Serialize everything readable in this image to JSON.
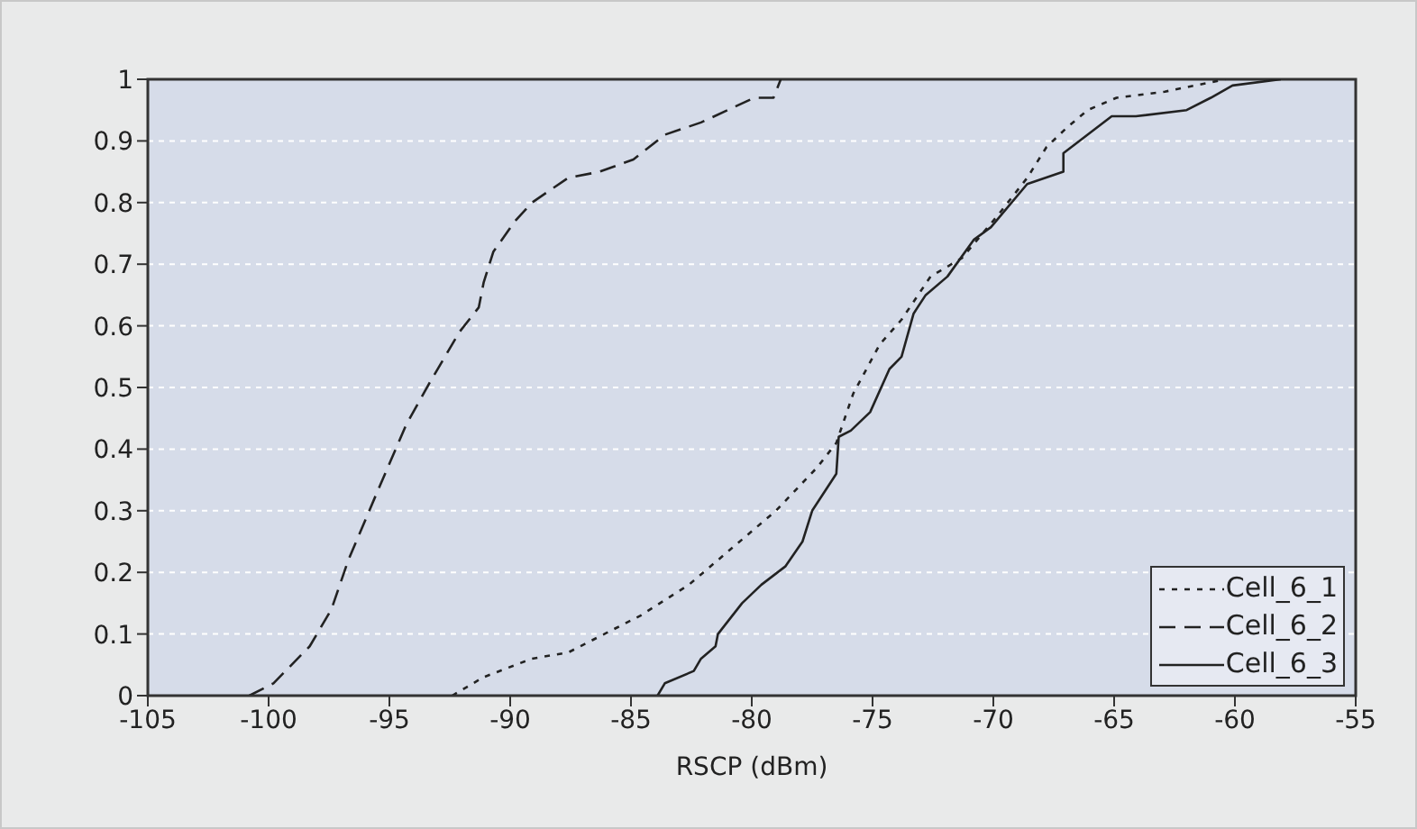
{
  "chart_data": {
    "type": "line",
    "xlabel": "RSCP (dBm)",
    "xlim": [
      -105,
      -55
    ],
    "xticks": [
      -105,
      -100,
      -95,
      -90,
      -85,
      -80,
      -75,
      -70,
      -65,
      -60,
      -55
    ],
    "ylim": [
      0,
      1
    ],
    "yticks": [
      0,
      0.1,
      0.2,
      0.3,
      0.4,
      0.5,
      0.6,
      0.7,
      0.8,
      0.9,
      1
    ],
    "grid": "y",
    "legend": "bottom right",
    "marker": "none",
    "series": [
      {
        "name": "Cell_6_1",
        "color": "#222222",
        "line_style": "dotted",
        "x": [
          -92.4,
          -91.1,
          -89.1,
          -87.6,
          -85.6,
          -84.6,
          -82.6,
          -80.8,
          -79,
          -77.3,
          -76.5,
          -75.8,
          -74.7,
          -73.8,
          -72.6,
          -71.3,
          -69.8,
          -68.6,
          -67.8,
          -67,
          -66.1,
          -64.9,
          -62.9,
          -60.4
        ],
        "values": [
          0,
          0.03,
          0.06,
          0.07,
          0.11,
          0.13,
          0.18,
          0.24,
          0.3,
          0.37,
          0.41,
          0.49,
          0.57,
          0.61,
          0.68,
          0.71,
          0.78,
          0.84,
          0.89,
          0.92,
          0.95,
          0.97,
          0.98,
          1
        ]
      },
      {
        "name": "Cell_6_2",
        "color": "#222222",
        "line_style": "dashed",
        "x": [
          -100.8,
          -99.8,
          -98.3,
          -97.4,
          -96.7,
          -95.4,
          -94.3,
          -93.3,
          -92.1,
          -91.3,
          -91.1,
          -90.7,
          -89.8,
          -89.1,
          -87.6,
          -86.3,
          -84.9,
          -83.6,
          -82.1,
          -79.9,
          -79.1,
          -78.8
        ],
        "values": [
          0,
          0.02,
          0.08,
          0.14,
          0.22,
          0.34,
          0.44,
          0.51,
          0.59,
          0.63,
          0.67,
          0.72,
          0.77,
          0.8,
          0.84,
          0.85,
          0.87,
          0.91,
          0.93,
          0.97,
          0.97,
          1
        ]
      },
      {
        "name": "Cell_6_3",
        "color": "#222222",
        "line_style": "solid",
        "x": [
          -83.9,
          -83.6,
          -82.4,
          -82.1,
          -81.5,
          -81.4,
          -80.4,
          -79.6,
          -78.6,
          -77.9,
          -77.5,
          -76.5,
          -76.4,
          -75.9,
          -75.1,
          -74.3,
          -73.8,
          -73.3,
          -72.8,
          -71.9,
          -70.8,
          -70.1,
          -68.6,
          -67.1,
          -67.1,
          -66.1,
          -65.1,
          -64.1,
          -62,
          -61,
          -60.1,
          -58.1
        ],
        "values": [
          0,
          0.02,
          0.04,
          0.06,
          0.08,
          0.1,
          0.15,
          0.18,
          0.21,
          0.25,
          0.3,
          0.36,
          0.42,
          0.43,
          0.46,
          0.53,
          0.55,
          0.62,
          0.65,
          0.68,
          0.74,
          0.76,
          0.83,
          0.85,
          0.88,
          0.91,
          0.94,
          0.94,
          0.95,
          0.97,
          0.99,
          1
        ]
      }
    ]
  }
}
